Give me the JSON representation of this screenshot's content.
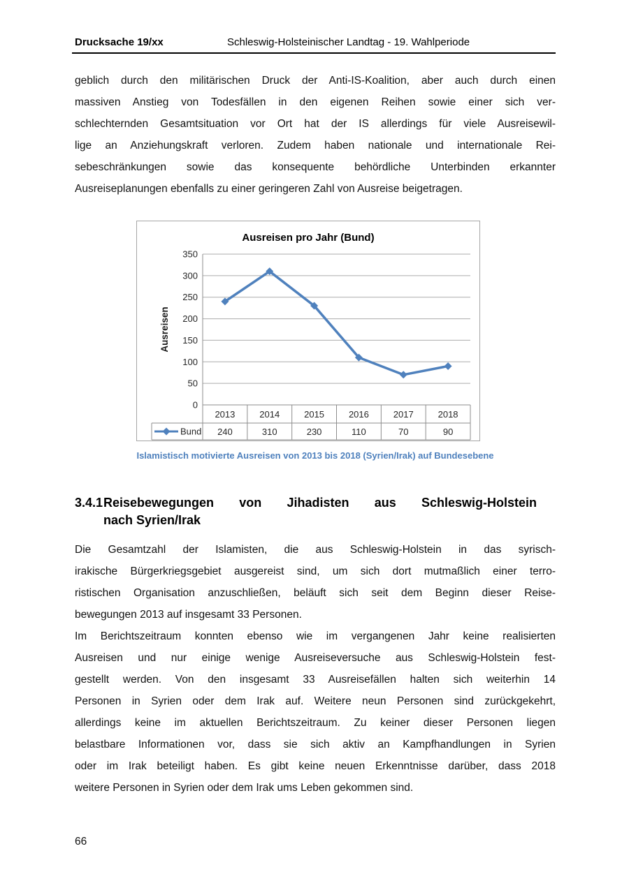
{
  "header": {
    "doc_number": "Drucksache 19/xx",
    "title": "Schleswig-Holsteinischer Landtag - 19. Wahlperiode"
  },
  "page_number": "66",
  "content": {
    "paragraph1_lines": [
      "geblich durch den militärischen Druck der Anti-IS-Koalition, aber auch durch einen",
      "massiven Anstieg von Todesfällen in den eigenen Reihen sowie einer sich ver-",
      "schlechternden Gesamtsituation vor Ort hat der IS allerdings für viele Ausreisewil-",
      "lige an Anziehungskraft verloren. Zudem haben nationale und internationale Rei-",
      "sebeschränkungen sowie das konsequente behördliche Unterbinden erkannter",
      "Ausreiseplanungen ebenfalls zu einer geringeren Zahl von Ausreise beigetragen."
    ],
    "figure_caption": "Islamistisch motivierte Ausreisen von 2013 bis 2018 (Syrien/Irak) auf Bundesebene",
    "section_heading": {
      "number": "3.4.1",
      "line1": "Reisebewegungen von Jihadisten aus Schleswig-Holstein",
      "line2": "nach Syrien/Irak"
    },
    "paragraph2_lines": [
      "Die Gesamtzahl der Islamisten, die aus Schleswig-Holstein in das syrisch-",
      "irakische Bürgerkriegsgebiet ausgereist sind, um sich dort mutmaßlich einer terro-",
      "ristischen Organisation anzuschließen, beläuft sich seit dem Beginn dieser Reise-",
      "bewegungen 2013 auf insgesamt 33 Personen."
    ],
    "paragraph3_lines": [
      "Im Berichtszeitraum konnten ebenso wie im vergangenen Jahr keine realisierten",
      "Ausreisen und nur einige wenige Ausreiseversuche aus Schleswig-Holstein fest-",
      "gestellt werden. Von den insgesamt 33 Ausreisefällen halten sich weiterhin 14",
      "Personen in Syrien oder dem Irak auf. Weitere neun Personen sind zurückgekehrt,",
      "allerdings keine im aktuellen Berichtszeitraum. Zu keiner dieser Personen liegen",
      "belastbare Informationen vor, dass sie sich aktiv an Kampfhandlungen in Syrien",
      "oder im Irak beteiligt haben. Es gibt keine neuen Erkenntnisse darüber, dass 2018",
      "weitere Personen in Syrien oder dem Irak ums Leben gekommen sind."
    ]
  },
  "chart_data": {
    "type": "line",
    "title": "Ausreisen pro Jahr (Bund)",
    "xlabel": "",
    "ylabel": "Ausreisen",
    "categories": [
      "2013",
      "2014",
      "2015",
      "2016",
      "2017",
      "2018"
    ],
    "series": [
      {
        "name": "Bund",
        "values": [
          240,
          310,
          230,
          110,
          70,
          90
        ]
      }
    ],
    "ylim": [
      0,
      350
    ],
    "ytick_step": 50,
    "grid": true,
    "marker": "diamond",
    "legend_position": "data-table-left",
    "colors": {
      "series": "#4F81BD",
      "grid": "#ABABAB",
      "table_border": "#8C8C8C",
      "frame": "#A6A6A6",
      "text": "#262626"
    }
  },
  "styles": {
    "accent_blue": "#4F81BD",
    "caption_color": "#4F81BD",
    "rule_color": "#000000"
  }
}
